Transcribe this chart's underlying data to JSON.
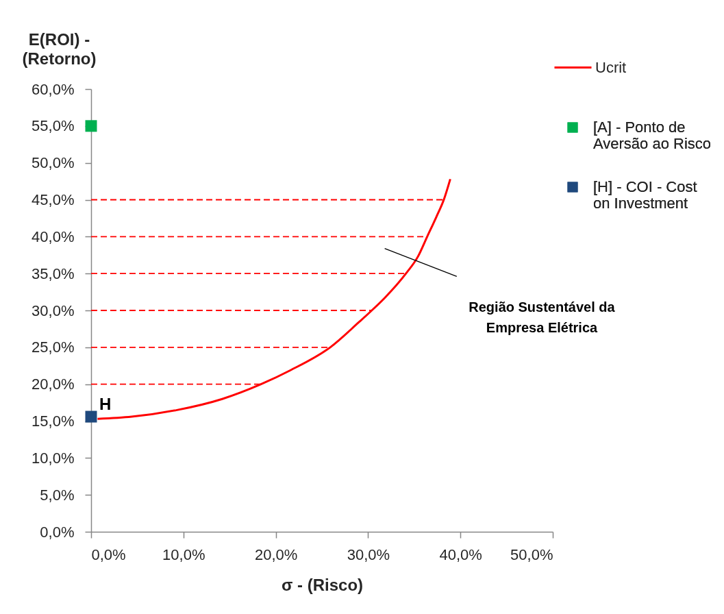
{
  "chart_data": {
    "type": "line",
    "xlabel": "σ - (Risco)",
    "ylabel": "E(ROI) - (Retorno)",
    "xlim": [
      0,
      50
    ],
    "xticks": [
      {
        "value": 0,
        "label": "0,0%"
      },
      {
        "value": 10,
        "label": "10,0%"
      },
      {
        "value": 20,
        "label": "20,0%"
      },
      {
        "value": 30,
        "label": "30,0%"
      },
      {
        "value": 40,
        "label": "40,0%"
      },
      {
        "value": 50,
        "label": "50,0%"
      }
    ],
    "ylim": [
      0,
      60
    ],
    "yticks": [
      {
        "value": 0,
        "label": "0,0%"
      },
      {
        "value": 5,
        "label": "5,0%"
      },
      {
        "value": 10,
        "label": "10,0%"
      },
      {
        "value": 15,
        "label": "15,0%"
      },
      {
        "value": 20,
        "label": "20,0%"
      },
      {
        "value": 25,
        "label": "25,0%"
      },
      {
        "value": 30,
        "label": "30,0%"
      },
      {
        "value": 35,
        "label": "35,0%"
      },
      {
        "value": 40,
        "label": "40,0%"
      },
      {
        "value": 45,
        "label": "45,0%"
      },
      {
        "value": 50,
        "label": "50,0%"
      },
      {
        "value": 55,
        "label": "55,0%"
      },
      {
        "value": 60,
        "label": "60,0%"
      }
    ],
    "legend": "top right",
    "series": [
      {
        "name": "Ucrit",
        "color": "#ff0000",
        "line_style": "solid",
        "marker": "none",
        "x": [
          0.7,
          4.4,
          9.3,
          14.2,
          18.4,
          21.6,
          25.9,
          29,
          30.4,
          31.8,
          34.1,
          35.4,
          36.4,
          37.4,
          38.2,
          38.9
        ],
        "values": [
          15.3,
          15.6,
          16.5,
          18,
          20,
          21.9,
          25,
          28.4,
          30,
          31.7,
          35,
          37.3,
          40,
          42.7,
          45,
          47.8
        ]
      },
      {
        "name": "[A] - Ponto de Aversão ao Risco",
        "type": "scatter",
        "color": "#00b050",
        "marker": "square",
        "x": [
          0
        ],
        "values": [
          55
        ]
      },
      {
        "name": "[H] - COI - Cost on Investment",
        "type": "scatter",
        "color": "#1f497d",
        "marker": "square",
        "x": [
          0
        ],
        "values": [
          15.6
        ]
      },
      {
        "color": "#ff0000",
        "line_style": "dashed",
        "marker": "none",
        "x": [
          0,
          18.4
        ],
        "values": [
          20,
          20
        ]
      },
      {
        "color": "#ff0000",
        "line_style": "dashed",
        "marker": "none",
        "x": [
          0,
          25.9
        ],
        "values": [
          25,
          25
        ]
      },
      {
        "color": "#ff0000",
        "line_style": "dashed",
        "marker": "none",
        "x": [
          0,
          30.4
        ],
        "values": [
          30,
          30
        ]
      },
      {
        "color": "#ff0000",
        "line_style": "dashed",
        "marker": "none",
        "x": [
          0,
          34.1
        ],
        "values": [
          35,
          35
        ]
      },
      {
        "color": "#ff0000",
        "line_style": "dashed",
        "marker": "none",
        "x": [
          0,
          36.4
        ],
        "values": [
          40,
          40
        ]
      },
      {
        "color": "#ff0000",
        "line_style": "dashed",
        "marker": "none",
        "x": [
          0,
          38.2
        ],
        "values": [
          45,
          45
        ]
      },
      {
        "color": "#000000",
        "line_style": "solid",
        "marker": "none",
        "x": [
          31.8,
          39.6
        ],
        "values": [
          38.4,
          34.6
        ]
      }
    ],
    "annotations": [
      {
        "text": "H",
        "x": 0,
        "y": 15.6
      },
      "Região Sustentável da Empresa Elétrica"
    ]
  }
}
